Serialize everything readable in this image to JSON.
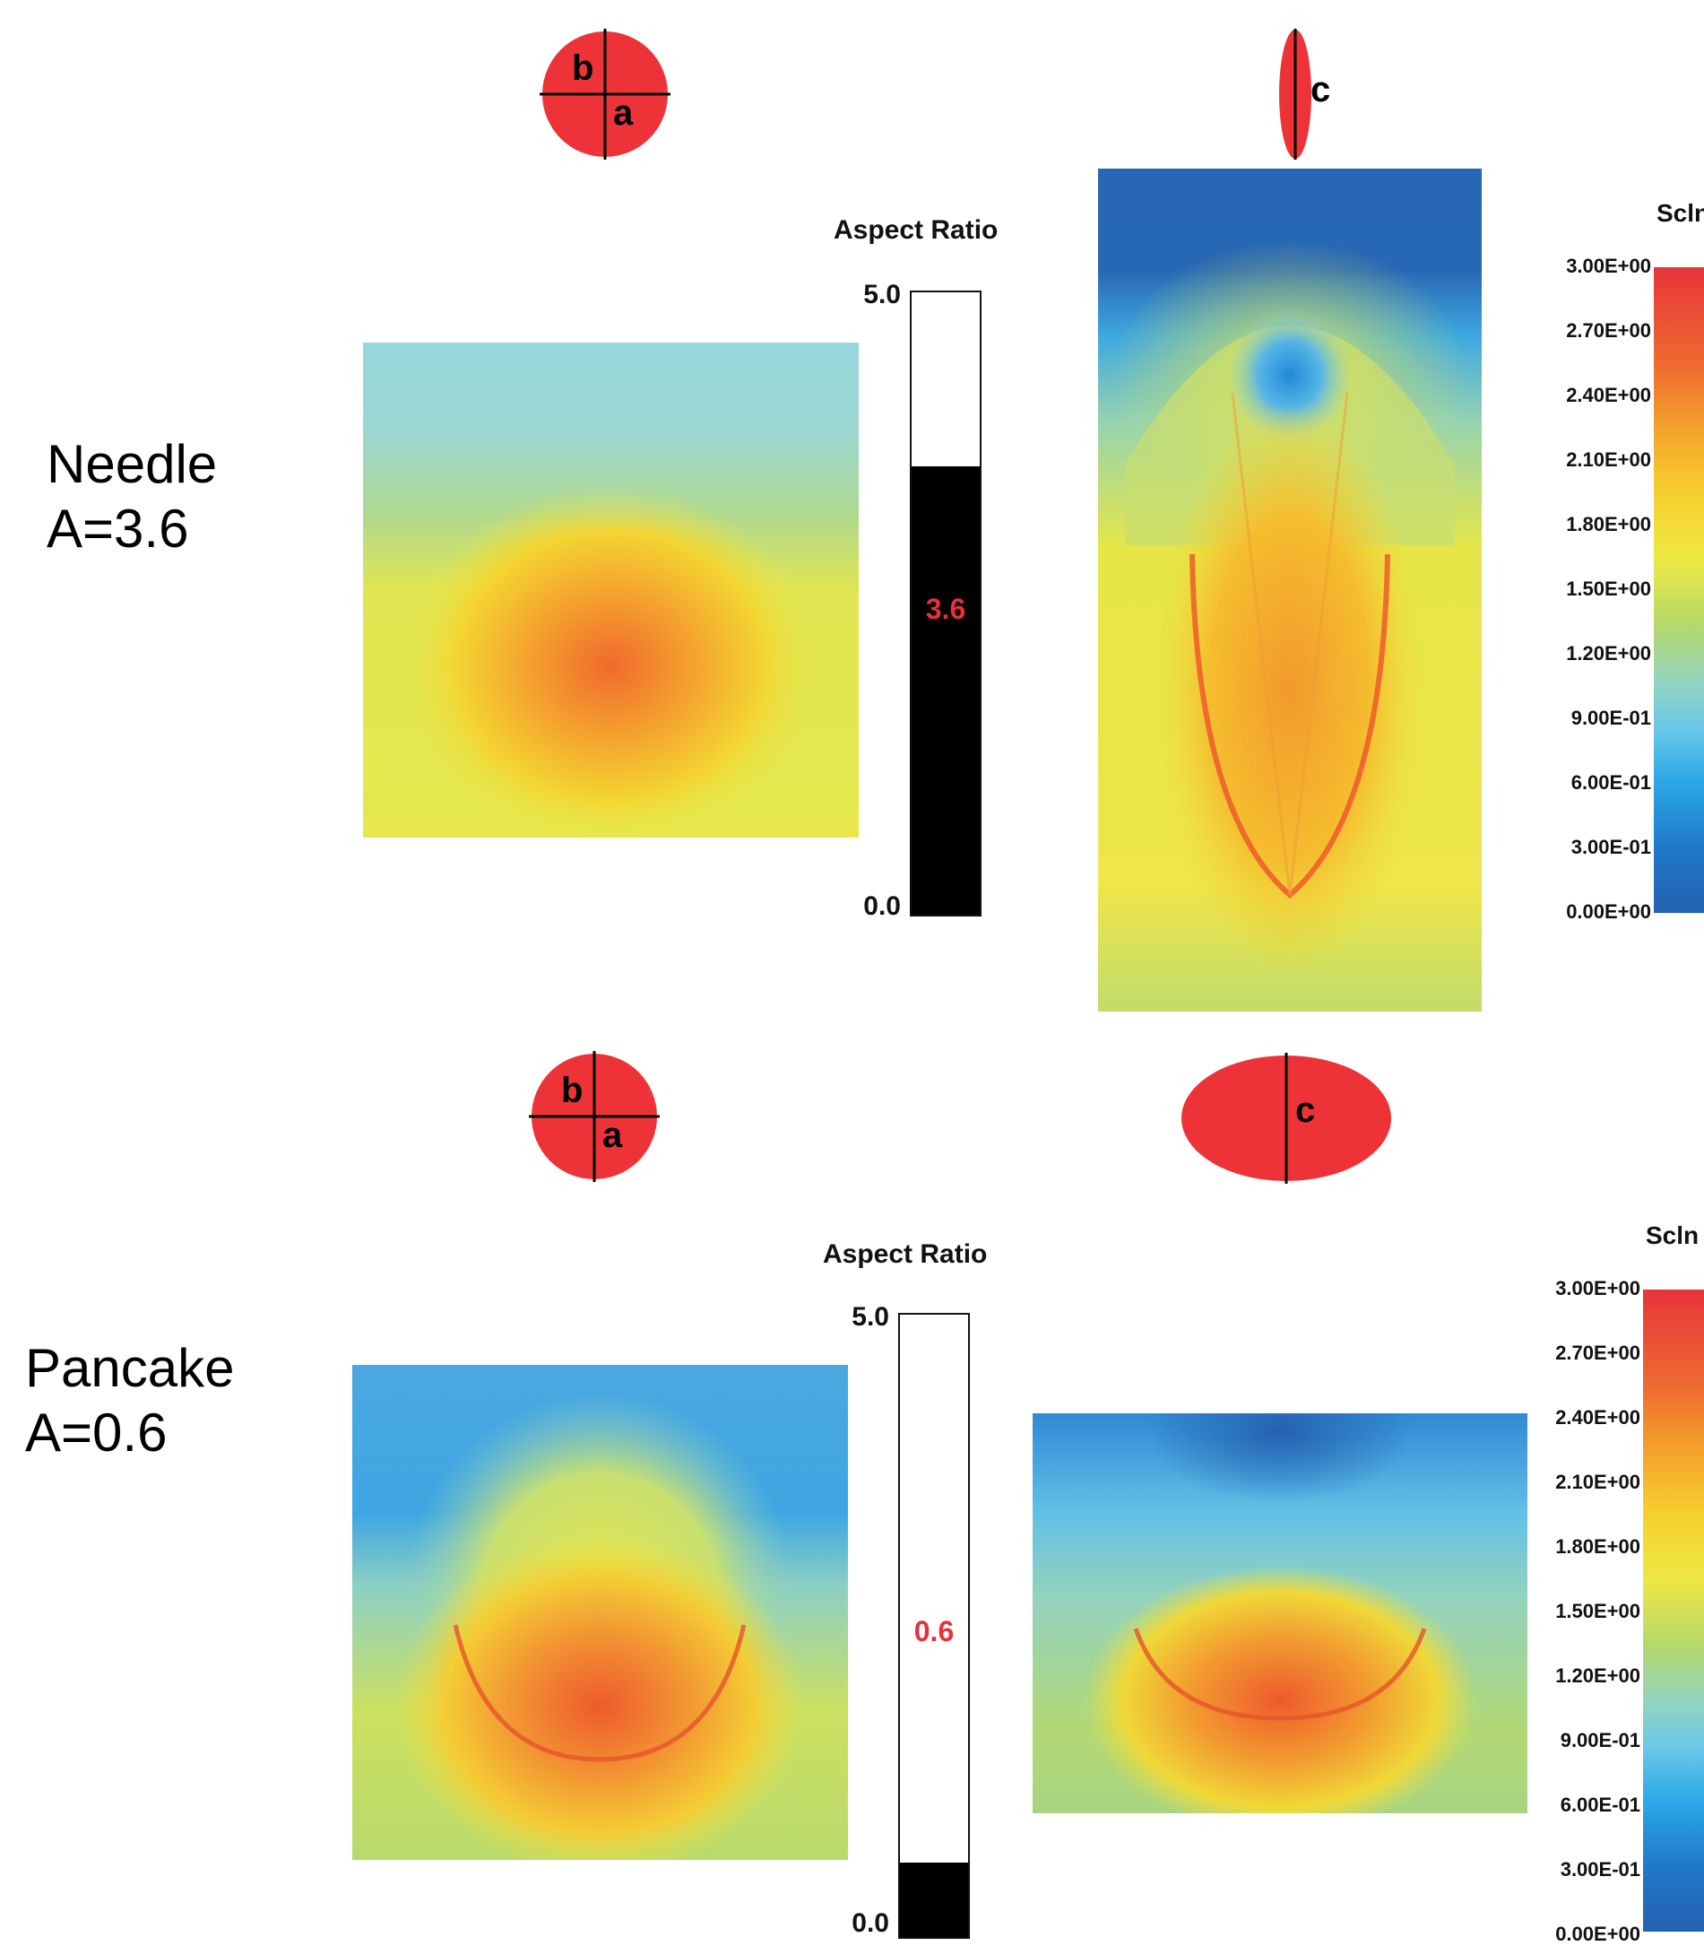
{
  "panels": [
    {
      "label_line1": "Needle",
      "label_line2": "A=3.6",
      "shape_left": {
        "label_b": "b",
        "label_a": "a"
      },
      "shape_right": {
        "label_c": "c"
      },
      "aspect": {
        "title": "Aspect Ratio",
        "max_label": "5.0",
        "min_label": "0.0",
        "value_label": "3.6",
        "value": 3.6,
        "max": 5.0
      },
      "colorbar": {
        "title": "Scln",
        "ticks": [
          "3.00E+00",
          "2.70E+00",
          "2.40E+00",
          "2.10E+00",
          "1.80E+00",
          "1.50E+00",
          "1.20E+00",
          "9.00E-01",
          "6.00E-01",
          "3.00E-01",
          "0.00E+00"
        ]
      }
    },
    {
      "label_line1": "Pancake",
      "label_line2": "A=0.6",
      "shape_left": {
        "label_b": "b",
        "label_a": "a"
      },
      "shape_right": {
        "label_c": "c"
      },
      "aspect": {
        "title": "Aspect Ratio",
        "max_label": "5.0",
        "min_label": "0.0",
        "value_label": "0.6",
        "value": 0.6,
        "max": 5.0
      },
      "colorbar": {
        "title": "Scln",
        "ticks": [
          "3.00E+00",
          "2.70E+00",
          "2.40E+00",
          "2.10E+00",
          "1.80E+00",
          "1.50E+00",
          "1.20E+00",
          "9.00E-01",
          "6.00E-01",
          "3.00E-01",
          "0.00E+00"
        ]
      }
    }
  ],
  "colors": {
    "shape_fill": "#ee3338",
    "value_text": "#e8303a"
  }
}
